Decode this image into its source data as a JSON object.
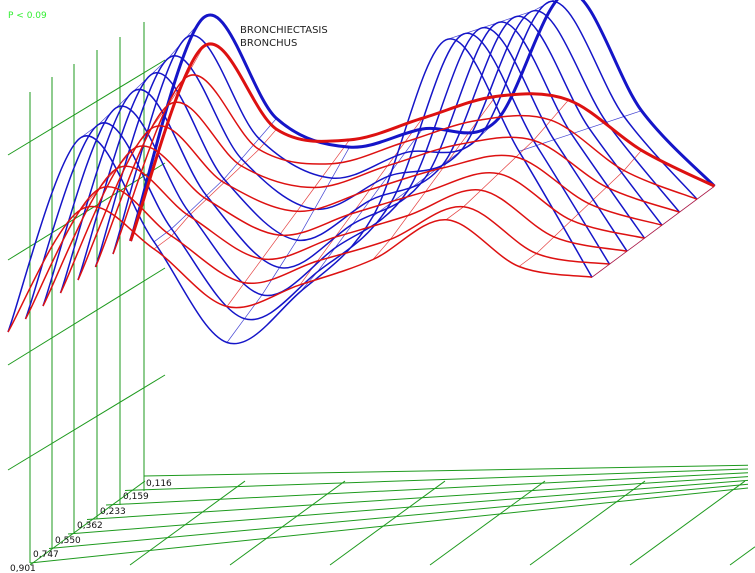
{
  "chart_data": {
    "type": "line",
    "title_lines": [
      "BRONCHIECTASIS",
      "BRONCHUS"
    ],
    "significance_label": "P < 0.09",
    "depth_ticks": [
      "0,901",
      "0,747",
      "0,550",
      "0,362",
      "0,233",
      "0,159",
      "0,116"
    ],
    "highlight_tick_index": 6,
    "colors": {
      "grid": "#1e9a1e",
      "blue": "#1515c8",
      "red": "#dd1111",
      "highlight_tick": "#dd1111",
      "significance": "#33ee33"
    },
    "series": [
      {
        "color": "blue",
        "values": [
          0.05,
          0.6,
          0.32,
          0.05,
          0.2,
          0.42,
          0.92,
          0.62,
          0.28
        ]
      },
      {
        "color": "blue",
        "values": [
          0.05,
          0.6,
          0.32,
          0.08,
          0.22,
          0.42,
          0.9,
          0.6,
          0.28
        ]
      },
      {
        "color": "blue",
        "values": [
          0.05,
          0.61,
          0.33,
          0.11,
          0.25,
          0.42,
          0.88,
          0.58,
          0.28
        ]
      },
      {
        "color": "blue",
        "values": [
          0.05,
          0.62,
          0.34,
          0.15,
          0.28,
          0.42,
          0.86,
          0.56,
          0.28
        ]
      },
      {
        "color": "blue",
        "values": [
          0.05,
          0.63,
          0.35,
          0.19,
          0.31,
          0.42,
          0.84,
          0.54,
          0.28
        ]
      },
      {
        "color": "blue",
        "values": [
          0.05,
          0.64,
          0.37,
          0.24,
          0.34,
          0.42,
          0.82,
          0.52,
          0.28
        ]
      },
      {
        "color": "blue",
        "values": [
          0.05,
          0.66,
          0.39,
          0.29,
          0.37,
          0.42,
          0.81,
          0.5,
          0.28
        ]
      },
      {
        "color": "blue",
        "values": [
          0.05,
          0.68,
          0.41,
          0.34,
          0.4,
          0.43,
          0.8,
          0.48,
          0.28
        ]
      },
      {
        "color": "red",
        "values": [
          0.05,
          0.4,
          0.3,
          0.15,
          0.22,
          0.3,
          0.42,
          0.3,
          0.28
        ]
      },
      {
        "color": "red",
        "values": [
          0.05,
          0.42,
          0.3,
          0.18,
          0.25,
          0.32,
          0.42,
          0.3,
          0.28
        ]
      },
      {
        "color": "red",
        "values": [
          0.05,
          0.44,
          0.32,
          0.21,
          0.28,
          0.35,
          0.43,
          0.31,
          0.28
        ]
      },
      {
        "color": "red",
        "values": [
          0.05,
          0.46,
          0.33,
          0.24,
          0.31,
          0.38,
          0.44,
          0.32,
          0.28
        ]
      },
      {
        "color": "red",
        "values": [
          0.05,
          0.48,
          0.34,
          0.27,
          0.34,
          0.41,
          0.45,
          0.33,
          0.28
        ]
      },
      {
        "color": "red",
        "values": [
          0.05,
          0.51,
          0.35,
          0.3,
          0.37,
          0.44,
          0.46,
          0.34,
          0.28
        ]
      },
      {
        "color": "red",
        "values": [
          0.05,
          0.55,
          0.36,
          0.33,
          0.4,
          0.47,
          0.48,
          0.35,
          0.28
        ]
      },
      {
        "color": "red",
        "values": [
          0.05,
          0.6,
          0.38,
          0.36,
          0.43,
          0.5,
          0.5,
          0.37,
          0.28
        ]
      }
    ]
  }
}
